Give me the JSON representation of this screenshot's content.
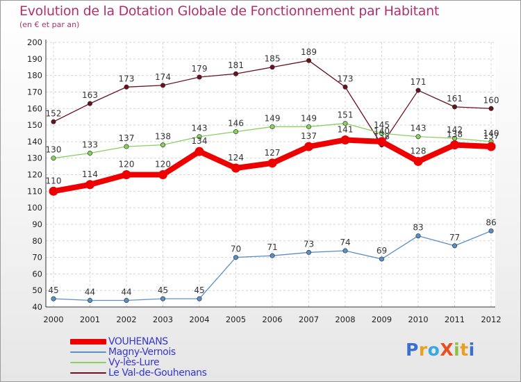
{
  "title": "Evolution de la Dotation Globale de Fonctionnement par Habitant",
  "subtitle": "(en € et par an)",
  "brand": {
    "text": "ProXiti",
    "letters": [
      "P",
      "r",
      "o",
      "X",
      "i",
      "t",
      "i"
    ],
    "colors": [
      "#3a6fd0",
      "#e8a020",
      "#3aa8e0",
      "#e85020",
      "#8cc040",
      "#e8a020",
      "#3a6fd0"
    ]
  },
  "chart_data": {
    "type": "line",
    "title": "Evolution de la Dotation Globale de Fonctionnement par Habitant",
    "subtitle": "(en € et par an)",
    "xlabel": "",
    "ylabel": "",
    "ylim": [
      40,
      200
    ],
    "ytick_step": 10,
    "ytick_labels": [
      "40",
      "50",
      "60",
      "70",
      "80",
      "90",
      "100",
      "110",
      "120",
      "130",
      "140",
      "150",
      "160",
      "170",
      "180",
      "190",
      "200"
    ],
    "x": [
      "2000",
      "2001",
      "2002",
      "2003",
      "2004",
      "2005",
      "2006",
      "2007",
      "2008",
      "2009",
      "2010",
      "2011",
      "2012"
    ],
    "grid": true,
    "legend_position": "bottom-left",
    "series": [
      {
        "name": "Le Val-de-Gouhenans",
        "color": "#6b1020",
        "values": [
          152,
          163,
          173,
          174,
          179,
          181,
          185,
          189,
          173,
          138,
          171,
          161,
          160
        ],
        "labels": [
          "152",
          "163",
          "173",
          "174",
          "179",
          "181",
          "185",
          "189",
          "173",
          "138",
          "171",
          "161",
          "160"
        ]
      },
      {
        "name": "Vy-lès-Lure",
        "color": "#88d060",
        "values": [
          130,
          133,
          137,
          138,
          143,
          146,
          149,
          149,
          151,
          145,
          143,
          142,
          140
        ],
        "labels": [
          "130",
          "133",
          "137",
          "138",
          "143",
          "146",
          "149",
          "149",
          "151",
          "145",
          "143",
          "142",
          "140"
        ]
      },
      {
        "name": "Magny-Vernois",
        "color": "#5a90c8",
        "values": [
          45,
          44,
          44,
          45,
          45,
          70,
          71,
          73,
          74,
          69,
          83,
          77,
          86
        ],
        "labels": [
          "45",
          "44",
          "44",
          "45",
          "45",
          "70",
          "71",
          "73",
          "74",
          "69",
          "83",
          "77",
          "86"
        ]
      },
      {
        "name": "VOUHENANS",
        "color": "#ee0000",
        "values": [
          110,
          114,
          120,
          120,
          134,
          124,
          127,
          137,
          141,
          140,
          128,
          138,
          137
        ],
        "labels": [
          "110",
          "114",
          "120",
          "120",
          "134",
          "124",
          "127",
          "137",
          "141",
          "140",
          "128",
          "138",
          "137"
        ]
      }
    ],
    "legend": [
      {
        "name": "VOUHENANS",
        "color": "#ee0000"
      },
      {
        "name": "Magny-Vernois",
        "color": "#5a90c8"
      },
      {
        "name": "Vy-lès-Lure",
        "color": "#88d060"
      },
      {
        "name": "Le Val-de-Gouhenans",
        "color": "#6b1020"
      }
    ]
  }
}
